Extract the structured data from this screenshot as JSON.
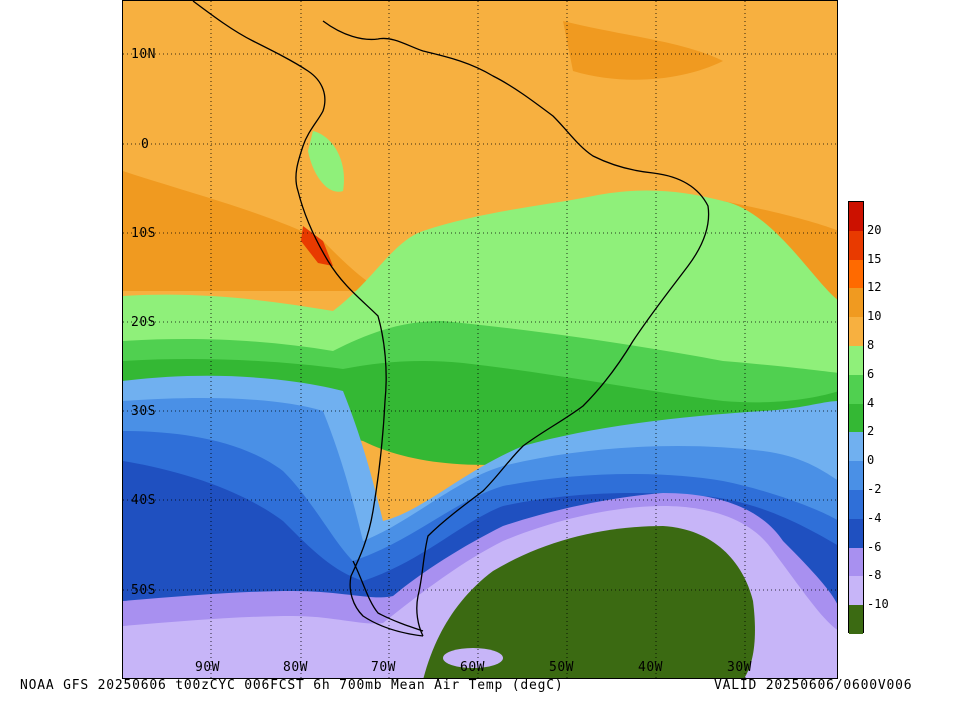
{
  "map": {
    "title": "NOAA GFS 20250606 t00zCYC 006FCST 6h 700mb Mean Air Temp (degC)",
    "valid": "VALID 20250606/0600V006",
    "lat_labels": [
      "10N",
      "0",
      "10S",
      "20S",
      "30S",
      "40S",
      "50S"
    ],
    "lon_labels": [
      "90W",
      "80W",
      "70W",
      "60W",
      "50W",
      "40W",
      "30W"
    ],
    "colorbar": {
      "labels": [
        "20",
        "15",
        "12",
        "10",
        "8",
        "6",
        "4",
        "2",
        "0",
        "-2",
        "-4",
        "-6",
        "-8",
        "-10"
      ],
      "colors": [
        "#cc1100",
        "#e83a00",
        "#ff6a00",
        "#f09a20",
        "#f7b040",
        "#8ff07a",
        "#50d050",
        "#34b834",
        "#70b0f0",
        "#4a90e6",
        "#2f6fd8",
        "#1f50c0",
        "#a890f0",
        "#c7b5f8",
        "#3b6a12"
      ]
    },
    "colors": {
      "warm_orange": "#f7b040",
      "orange_mid": "#f09a20",
      "light_green": "#8ff07a",
      "green": "#50d050",
      "dark_green": "#34b834",
      "light_blue": "#70b0f0",
      "mid_blue": "#4a90e6",
      "blue": "#2f6fd8",
      "dark_blue": "#1f50c0",
      "lavender": "#a890f0",
      "light_lavender": "#c7b5f8",
      "cold_green": "#3b6a12"
    }
  }
}
